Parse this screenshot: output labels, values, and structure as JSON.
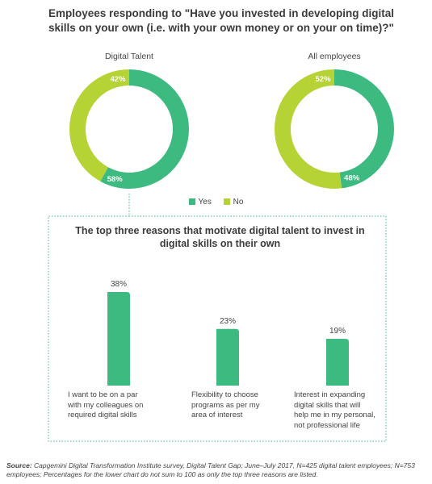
{
  "title": "Employees responding to \"Have you invested in developing digital skills on your own (i.e. with your own money or on your on time)?\"",
  "colors": {
    "yes": "#3dba80",
    "no": "#b5d334",
    "dotted": "#3dba80"
  },
  "legend": {
    "yes": "Yes",
    "no": "No"
  },
  "chart_data": [
    {
      "type": "pie",
      "title": "Digital Talent",
      "labels": [
        "Yes",
        "No"
      ],
      "values": [
        58,
        42
      ],
      "value_labels": [
        "58%",
        "42%"
      ]
    },
    {
      "type": "pie",
      "title": "All employees",
      "labels": [
        "Yes",
        "No"
      ],
      "values": [
        48,
        52
      ],
      "value_labels": [
        "48%",
        "52%"
      ]
    },
    {
      "type": "bar",
      "title": "The top three reasons that motivate digital talent to invest in digital skills on their own",
      "categories": [
        "I want to be on a par with my colleagues on required digital skills",
        "Flexibility to choose programs as per my area of interest",
        "Interest in expanding digital skills that will help me in my personal, not professional life"
      ],
      "values": [
        38,
        23,
        19
      ],
      "value_labels": [
        "38%",
        "23%",
        "19%"
      ],
      "ylim": [
        0,
        40
      ]
    }
  ],
  "bar_label_lines": [
    [
      "I want to be on a par",
      "with my colleagues on",
      "required digital skills"
    ],
    [
      "Flexibility to choose",
      "programs as per my",
      "area of interest"
    ],
    [
      "Interest in expanding",
      "digital skills that will",
      "help me in my personal,",
      "not professional life"
    ]
  ],
  "source": {
    "label": "Source:",
    "text": " Capgemini Digital Transformation Institute survey, Digital Talent Gap; June–July 2017, N=425 digital talent employees; N=753 employees; Percentages for the lower chart do not sum to 100 as only the top three reasons are listed."
  }
}
